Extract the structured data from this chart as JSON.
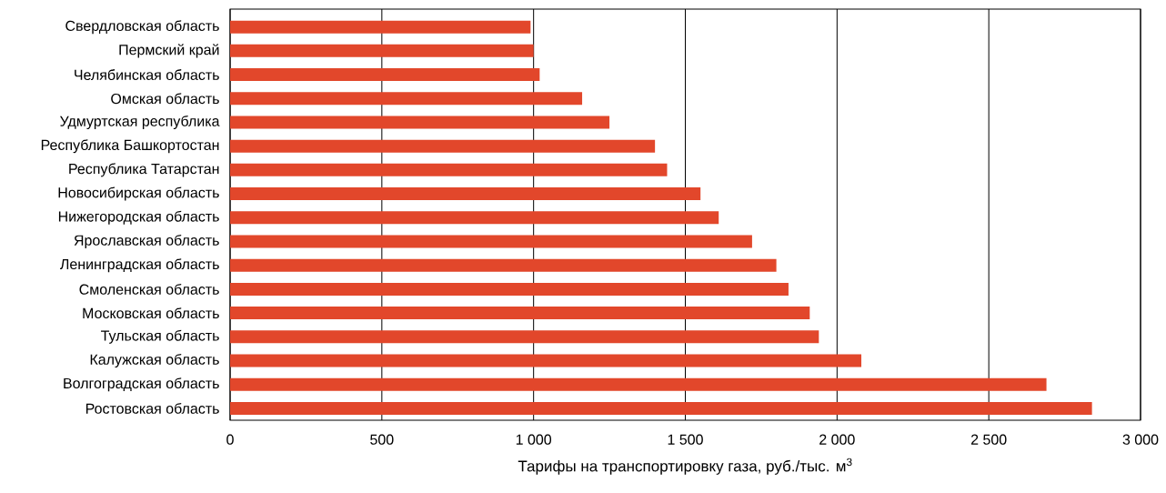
{
  "chart_data": {
    "type": "bar",
    "orientation": "horizontal",
    "xlabel": "Тарифы на транспортировку газа, руб./тыс. м$^{3}$",
    "categories": [
      "Свердловская область",
      "Пермский край",
      "Челябинская область",
      "Омская область",
      "Удмуртская республика",
      "Республика Башкортостан",
      "Республика Татарстан",
      "Новосибирская область",
      "Нижегородская область",
      "Ярославская область",
      "Ленинградская область",
      "Смоленская область",
      "Московская область",
      "Тульская область",
      "Калужская область",
      "Волгоградская область",
      "Ростовская область"
    ],
    "values": [
      990,
      1000,
      1020,
      1160,
      1250,
      1400,
      1440,
      1550,
      1610,
      1720,
      1800,
      1840,
      1910,
      1940,
      2080,
      2690,
      2840
    ],
    "color": "#e2472b",
    "xlim": [
      0,
      3000
    ],
    "xticks": [
      0,
      500,
      {
        "value": 1000,
        "label": "1 000"
      },
      {
        "value": 1500,
        "label": "1 500"
      },
      {
        "value": 2000,
        "label": "2 000"
      },
      {
        "value": 2500,
        "label": "2 500"
      },
      {
        "value": 3000,
        "label": "3 000"
      }
    ],
    "grid": "x"
  }
}
